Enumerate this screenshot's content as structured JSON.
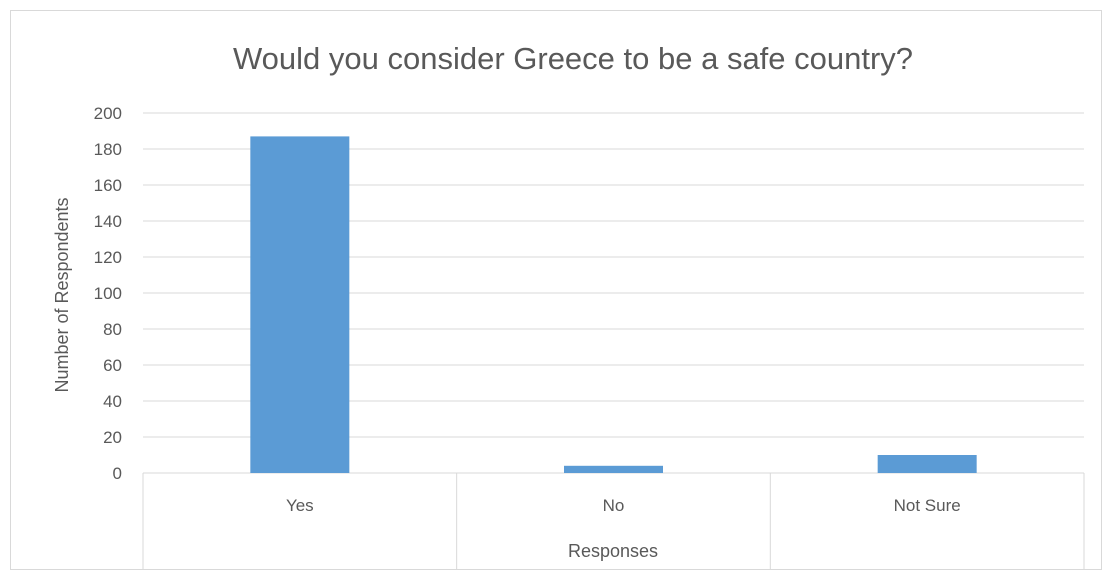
{
  "chart_data": {
    "type": "bar",
    "title": "Would you consider Greece to be a safe country?",
    "xlabel": "Responses",
    "ylabel": "Number of Respondents",
    "categories": [
      "Yes",
      "No",
      "Not Sure"
    ],
    "values": [
      187,
      4,
      10
    ],
    "ylim": [
      0,
      200
    ],
    "yticks": [
      "0",
      "20",
      "40",
      "60",
      "80",
      "100",
      "120",
      "140",
      "160",
      "180",
      "200"
    ],
    "grid": true,
    "legend": "none",
    "bar_color": "#5b9bd5",
    "grid_color": "#d9d9d9",
    "text_color": "#595959"
  }
}
